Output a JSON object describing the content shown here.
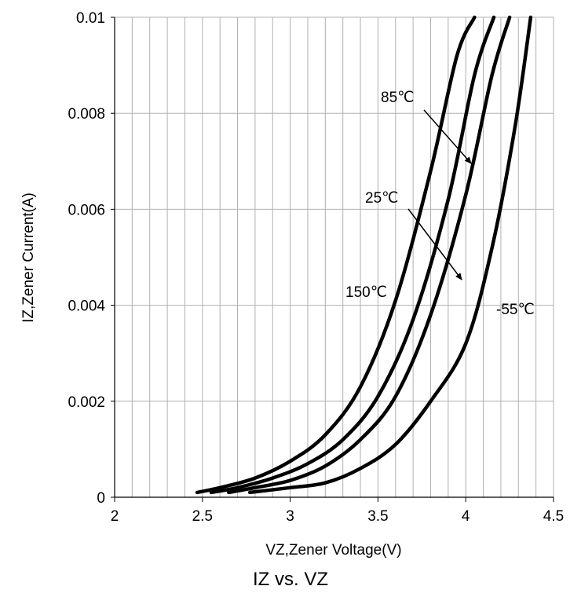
{
  "chart_data": {
    "type": "line",
    "title": "IZ vs. VZ",
    "xlabel": "VZ,Zener Voltage(V)",
    "ylabel": "IZ,Zener Current(A)",
    "xlim": [
      2,
      4.5
    ],
    "ylim": [
      0,
      0.01
    ],
    "x_ticks": [
      "2",
      "2.5",
      "3",
      "3.5",
      "4",
      "4.5"
    ],
    "y_ticks": [
      "0",
      "0.002",
      "0.004",
      "0.006",
      "0.008",
      "0.01"
    ],
    "x_minor_step": 0.1,
    "grid": true,
    "series": [
      {
        "name": "150℃",
        "x": [
          2.47,
          2.6,
          2.8,
          3.0,
          3.2,
          3.4,
          3.6,
          3.8,
          3.95,
          4.05
        ],
        "y": [
          0.0001,
          0.0002,
          0.0004,
          0.00075,
          0.0013,
          0.0023,
          0.0041,
          0.0068,
          0.0092,
          0.01
        ]
      },
      {
        "name": "85℃",
        "x": [
          2.55,
          2.7,
          2.9,
          3.1,
          3.3,
          3.5,
          3.7,
          3.9,
          4.05,
          4.16
        ],
        "y": [
          0.0001,
          0.0002,
          0.0004,
          0.0007,
          0.0012,
          0.0021,
          0.0037,
          0.0062,
          0.0088,
          0.01
        ]
      },
      {
        "name": "25℃",
        "x": [
          2.65,
          2.8,
          3.0,
          3.2,
          3.4,
          3.6,
          3.8,
          4.0,
          4.15,
          4.25
        ],
        "y": [
          0.0001,
          0.0002,
          0.00035,
          0.00065,
          0.0012,
          0.0021,
          0.0038,
          0.0063,
          0.0088,
          0.01
        ]
      },
      {
        "name": "-55℃",
        "x": [
          2.77,
          3.0,
          3.2,
          3.4,
          3.6,
          3.8,
          4.0,
          4.15,
          4.28,
          4.37
        ],
        "y": [
          0.0001,
          0.0002,
          0.0003,
          0.0006,
          0.0011,
          0.002,
          0.0032,
          0.0052,
          0.0077,
          0.01
        ]
      }
    ],
    "annotations": [
      {
        "text": "85℃",
        "target_series": "85℃",
        "arrow_to": [
          4.03,
          0.0072
        ]
      },
      {
        "text": "25℃",
        "target_series": "25℃",
        "arrow_to": [
          3.97,
          0.0045
        ]
      },
      {
        "text": "150℃",
        "target_series": "150℃"
      },
      {
        "text": "-55℃",
        "target_series": "-55℃"
      }
    ],
    "line_color": "#000000",
    "grid_color": "#b0b0b0"
  }
}
